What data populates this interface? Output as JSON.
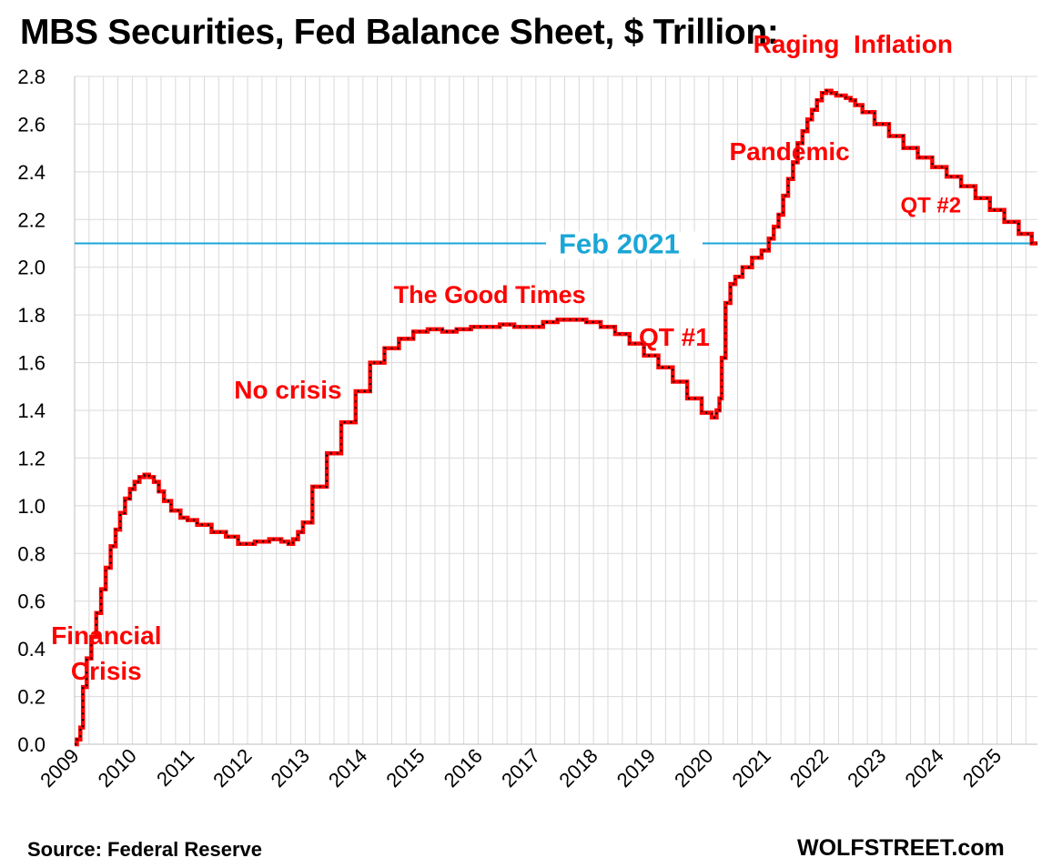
{
  "title": "MBS Securities, Fed Balance Sheet, $ Trillion:",
  "source": "Source: Federal Reserve",
  "brand": "WOLFSTREET.com",
  "colors": {
    "series": "#ff0000",
    "markers": "#000000",
    "reference_line": "#1aa6d6",
    "annotation": "#ff0000",
    "grid": "#d9d9d9"
  },
  "chart_data": {
    "type": "line",
    "xlabel": "",
    "ylabel": "",
    "xlim": [
      2009.0,
      2025.7
    ],
    "ylim": [
      0.0,
      2.8
    ],
    "grid": true,
    "y_ticks": [
      "0.0",
      "0.2",
      "0.4",
      "0.6",
      "0.8",
      "1.0",
      "1.2",
      "1.4",
      "1.6",
      "1.8",
      "2.0",
      "2.2",
      "2.4",
      "2.6",
      "2.8"
    ],
    "x_ticks": [
      "2009",
      "2010",
      "2011",
      "2012",
      "2013",
      "2014",
      "2015",
      "2016",
      "2017",
      "2018",
      "2019",
      "2020",
      "2021",
      "2022",
      "2023",
      "2024",
      "2025"
    ],
    "series": [
      {
        "x": [
          2009.0,
          2009.08,
          2009.12,
          2009.17,
          2009.25,
          2009.33,
          2009.42,
          2009.5,
          2009.58,
          2009.67,
          2009.75,
          2009.83,
          2009.92,
          2010.0,
          2010.08,
          2010.17,
          2010.25,
          2010.33,
          2010.42,
          2010.5,
          2010.6,
          2010.75,
          2010.92,
          2011.0,
          2011.25,
          2011.5,
          2011.75,
          2011.92,
          2012.0,
          2012.25,
          2012.5,
          2012.67,
          2012.75,
          2012.83,
          2012.92,
          2013.0,
          2013.25,
          2013.5,
          2013.75,
          2014.0,
          2014.25,
          2014.5,
          2014.75,
          2015.0,
          2015.25,
          2015.5,
          2015.75,
          2016.0,
          2016.25,
          2016.5,
          2016.75,
          2017.0,
          2017.25,
          2017.5,
          2017.75,
          2018.0,
          2018.25,
          2018.5,
          2018.75,
          2019.0,
          2019.25,
          2019.5,
          2019.75,
          2020.0,
          2020.1,
          2020.17,
          2020.2,
          2020.25,
          2020.33,
          2020.42,
          2020.5,
          2020.67,
          2020.83,
          2021.0,
          2021.08,
          2021.17,
          2021.25,
          2021.33,
          2021.42,
          2021.5,
          2021.58,
          2021.67,
          2021.75,
          2021.83,
          2021.92,
          2022.0,
          2022.08,
          2022.17,
          2022.25,
          2022.33,
          2022.42,
          2022.5,
          2022.58,
          2022.75,
          2023.0,
          2023.25,
          2023.5,
          2023.75,
          2024.0,
          2024.25,
          2024.5,
          2024.75,
          2025.0,
          2025.25,
          2025.5,
          2025.7
        ],
        "y": [
          0.0,
          0.02,
          0.07,
          0.24,
          0.36,
          0.45,
          0.55,
          0.65,
          0.74,
          0.83,
          0.9,
          0.97,
          1.03,
          1.07,
          1.1,
          1.12,
          1.13,
          1.12,
          1.1,
          1.06,
          1.02,
          0.98,
          0.95,
          0.94,
          0.92,
          0.89,
          0.87,
          0.84,
          0.84,
          0.85,
          0.86,
          0.85,
          0.84,
          0.86,
          0.89,
          0.93,
          1.08,
          1.22,
          1.35,
          1.48,
          1.6,
          1.66,
          1.7,
          1.73,
          1.74,
          1.73,
          1.74,
          1.75,
          1.75,
          1.76,
          1.75,
          1.75,
          1.77,
          1.78,
          1.78,
          1.77,
          1.75,
          1.72,
          1.68,
          1.63,
          1.58,
          1.52,
          1.45,
          1.39,
          1.37,
          1.4,
          1.45,
          1.62,
          1.85,
          1.93,
          1.96,
          2.0,
          2.04,
          2.07,
          2.12,
          2.17,
          2.22,
          2.3,
          2.37,
          2.44,
          2.52,
          2.57,
          2.62,
          2.66,
          2.7,
          2.73,
          2.74,
          2.73,
          2.72,
          2.72,
          2.71,
          2.7,
          2.68,
          2.65,
          2.6,
          2.55,
          2.5,
          2.46,
          2.42,
          2.38,
          2.34,
          2.29,
          2.24,
          2.19,
          2.14,
          2.1
        ]
      }
    ],
    "reference_line": {
      "y": 2.1,
      "label": "Feb 2021"
    },
    "annotations": [
      {
        "text": "Financial",
        "x": 2009.55,
        "y": 0.42
      },
      {
        "text": "Crisis",
        "x": 2009.55,
        "y": 0.27
      },
      {
        "text": "No crisis",
        "x": 2012.7,
        "y": 1.45
      },
      {
        "text": "The Good Times",
        "x": 2016.2,
        "y": 1.85
      },
      {
        "text": "QT #1",
        "x": 2019.4,
        "y": 1.67
      },
      {
        "text": "Pandemic",
        "x": 2021.4,
        "y": 2.45
      },
      {
        "text": "Raging  Inflation",
        "x": 2022.5,
        "y": 2.9
      },
      {
        "text": "QT #2",
        "x": 2023.85,
        "y": 2.23
      }
    ]
  }
}
